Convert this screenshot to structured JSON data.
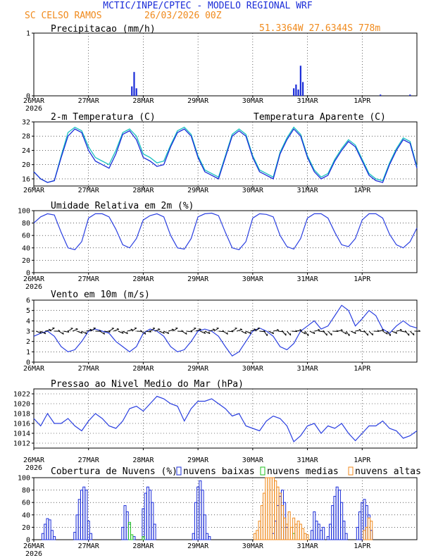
{
  "header": {
    "title": "MCTIC/INPE/CPTEC - MODELO REGIONAL WRF",
    "location": "SC CELSO RAMOS",
    "run": "26/03/2026 00Z",
    "coords": "51.3364W 27.6344S 778m",
    "title_color": "#1a2cd8",
    "accent_color": "#f08a1c"
  },
  "time_axis": {
    "labels": [
      "26MAR",
      "27MAR",
      "28MAR",
      "29MAR",
      "30MAR",
      "31MAR",
      "1APR"
    ],
    "year": "2026",
    "hours_total": 168
  },
  "chart_data": [
    {
      "type": "bar",
      "title": "Precipitacao (mm/h)",
      "ylim": [
        0,
        1
      ],
      "yticks": [
        0,
        1
      ],
      "x_hours": [
        43,
        44,
        45,
        114,
        115,
        116,
        117,
        118,
        152,
        165
      ],
      "values": [
        0.15,
        0.38,
        0.12,
        0.12,
        0.18,
        0.1,
        0.48,
        0.22,
        0.02,
        0.02
      ],
      "color": "#1a2cd8"
    },
    {
      "type": "line",
      "title": "2-m Temperatura (C)",
      "legend_extra": "Temperatura Aparente (C)",
      "ylim": [
        14,
        32
      ],
      "yticks": [
        16,
        20,
        24,
        28,
        32
      ],
      "series": [
        {
          "name": "2-m Temperatura (C)",
          "color": "#1a2cd8",
          "x": [
            0,
            3,
            6,
            9,
            12,
            15,
            18,
            21,
            24,
            27,
            30,
            33,
            36,
            39,
            42,
            45,
            48,
            51,
            54,
            57,
            60,
            63,
            66,
            69,
            72,
            75,
            78,
            81,
            84,
            87,
            90,
            93,
            96,
            99,
            102,
            105,
            108,
            111,
            114,
            117,
            120,
            123,
            126,
            129,
            132,
            135,
            138,
            141,
            144,
            147,
            150,
            153,
            156,
            159,
            162,
            165,
            168
          ],
          "y": [
            18,
            16,
            15,
            15.5,
            22,
            28,
            30,
            29,
            24,
            21,
            20,
            19,
            23,
            28.5,
            29.5,
            27,
            22,
            21,
            19.5,
            20,
            25,
            29,
            30,
            28,
            22,
            18,
            17,
            16,
            22,
            28,
            29.5,
            28,
            22,
            18,
            17,
            16,
            23,
            27,
            30,
            28,
            22,
            18,
            16,
            17,
            21,
            24,
            26.5,
            25,
            21,
            17,
            15.5,
            15,
            20,
            24,
            27,
            26,
            19
          ]
        },
        {
          "name": "Temperatura Aparente (C)",
          "color": "#18c0c0",
          "x": [
            0,
            3,
            6,
            9,
            12,
            15,
            18,
            21,
            24,
            27,
            30,
            33,
            36,
            39,
            42,
            45,
            48,
            51,
            54,
            57,
            60,
            63,
            66,
            69,
            72,
            75,
            78,
            81,
            84,
            87,
            90,
            93,
            96,
            99,
            102,
            105,
            108,
            111,
            114,
            117,
            120,
            123,
            126,
            129,
            132,
            135,
            138,
            141,
            144,
            147,
            150,
            153,
            156,
            159,
            162,
            165,
            168
          ],
          "y": [
            18,
            16,
            15,
            15.5,
            22.5,
            29,
            30.5,
            29.5,
            25,
            22,
            21,
            20,
            24,
            29,
            30,
            28,
            23,
            22,
            20.5,
            21,
            25.5,
            29.5,
            30.5,
            28.5,
            22.5,
            18.5,
            17.5,
            16.5,
            22.5,
            28.5,
            30,
            28.5,
            22.5,
            18.5,
            17.5,
            16.5,
            23.5,
            27.5,
            30.5,
            28.5,
            22.5,
            18.5,
            16.5,
            17.5,
            21.5,
            24.5,
            27,
            25.5,
            21.5,
            17.5,
            16,
            15.5,
            20.5,
            24.5,
            27.5,
            26.5,
            19.5
          ]
        }
      ]
    },
    {
      "type": "line",
      "title": "Umidade Relativa em 2m (%)",
      "ylim": [
        0,
        100
      ],
      "yticks": [
        0,
        20,
        40,
        60,
        80,
        100
      ],
      "x": [
        0,
        3,
        6,
        9,
        12,
        15,
        18,
        21,
        24,
        27,
        30,
        33,
        36,
        39,
        42,
        45,
        48,
        51,
        54,
        57,
        60,
        63,
        66,
        69,
        72,
        75,
        78,
        81,
        84,
        87,
        90,
        93,
        96,
        99,
        102,
        105,
        108,
        111,
        114,
        117,
        120,
        123,
        126,
        129,
        132,
        135,
        138,
        141,
        144,
        147,
        150,
        153,
        156,
        159,
        162,
        165,
        168
      ],
      "values": [
        80,
        90,
        95,
        93,
        65,
        40,
        37,
        50,
        88,
        95,
        95,
        90,
        70,
        45,
        40,
        55,
        85,
        92,
        95,
        90,
        60,
        40,
        38,
        55,
        90,
        95,
        96,
        92,
        65,
        40,
        37,
        50,
        88,
        95,
        94,
        90,
        60,
        42,
        38,
        55,
        88,
        95,
        95,
        88,
        65,
        45,
        42,
        55,
        85,
        95,
        95,
        88,
        62,
        45,
        40,
        50,
        72
      ]
    },
    {
      "type": "line",
      "title": "Vento em 10m (m/s)",
      "ylim": [
        0,
        6
      ],
      "yticks": [
        0,
        1,
        2,
        3,
        4,
        5,
        6
      ],
      "x": [
        0,
        3,
        6,
        9,
        12,
        15,
        18,
        21,
        24,
        27,
        30,
        33,
        36,
        39,
        42,
        45,
        48,
        51,
        54,
        57,
        60,
        63,
        66,
        69,
        72,
        75,
        78,
        81,
        84,
        87,
        90,
        93,
        96,
        99,
        102,
        105,
        108,
        111,
        114,
        117,
        120,
        123,
        126,
        129,
        132,
        135,
        138,
        141,
        144,
        147,
        150,
        153,
        156,
        159,
        162,
        165,
        168
      ],
      "values": [
        2.5,
        2.8,
        3,
        2.5,
        1.5,
        1,
        1.2,
        2,
        3,
        3.2,
        3,
        2.8,
        2,
        1.5,
        1,
        1.5,
        2.8,
        3.2,
        3,
        2.5,
        1.5,
        1,
        1.2,
        2,
        3,
        3.2,
        3,
        2.5,
        1.5,
        0.6,
        1,
        2,
        3,
        3.3,
        3,
        2.5,
        1.5,
        1.2,
        1.8,
        3,
        3.5,
        4,
        3.2,
        3.5,
        4.5,
        5.5,
        5,
        3.5,
        4.2,
        5,
        4.5,
        3.2,
        2.8,
        3.5,
        4,
        3.5,
        3.3
      ]
    },
    {
      "type": "line",
      "title": "Pressao ao Nivel Medio do Mar (hPa)",
      "ylim": [
        1011,
        1023
      ],
      "yticks": [
        1012,
        1014,
        1016,
        1018,
        1020,
        1022
      ],
      "x": [
        0,
        3,
        6,
        9,
        12,
        15,
        18,
        21,
        24,
        27,
        30,
        33,
        36,
        39,
        42,
        45,
        48,
        51,
        54,
        57,
        60,
        63,
        66,
        69,
        72,
        75,
        78,
        81,
        84,
        87,
        90,
        93,
        96,
        99,
        102,
        105,
        108,
        111,
        114,
        117,
        120,
        123,
        126,
        129,
        132,
        135,
        138,
        141,
        144,
        147,
        150,
        153,
        156,
        159,
        162,
        165,
        168
      ],
      "values": [
        1017,
        1015.5,
        1018,
        1016,
        1016,
        1017,
        1015.5,
        1014.5,
        1016.5,
        1018,
        1017,
        1015.5,
        1015,
        1016.5,
        1019,
        1019.5,
        1018.5,
        1020,
        1021.5,
        1021,
        1020,
        1019.5,
        1016.5,
        1019,
        1020.5,
        1020.5,
        1021,
        1020,
        1019,
        1017.5,
        1018,
        1015.5,
        1015,
        1014.5,
        1016.5,
        1017.5,
        1017,
        1015.5,
        1012.3,
        1013.5,
        1015.5,
        1016,
        1014,
        1015.5,
        1015,
        1016,
        1014,
        1012.5,
        1014,
        1015.5,
        1015.5,
        1016.5,
        1015,
        1014.5,
        1013,
        1013.5,
        1014.5
      ]
    },
    {
      "type": "bar",
      "title": "Cobertura de Nuvens (%)",
      "legend": [
        "nuvens baixas",
        "nuvens medias",
        "nuvens altas"
      ],
      "ylim": [
        0,
        100
      ],
      "yticks": [
        0,
        20,
        40,
        60,
        80,
        100
      ],
      "series": [
        {
          "name": "nuvens baixas",
          "color": "#1a2cd8",
          "x_hours": [
            4,
            5,
            6,
            7,
            8,
            9,
            18,
            19,
            20,
            21,
            22,
            23,
            24,
            25,
            39,
            40,
            41,
            42,
            44,
            48,
            49,
            50,
            51,
            52,
            53,
            70,
            71,
            72,
            73,
            74,
            75,
            76,
            77,
            105,
            106,
            107,
            108,
            109,
            110,
            111,
            122,
            123,
            124,
            125,
            126,
            127,
            129,
            130,
            131,
            132,
            133,
            134,
            135,
            136,
            137,
            142,
            143,
            144,
            145,
            146,
            147,
            148
          ],
          "values": [
            10,
            25,
            34,
            32,
            15,
            5,
            12,
            40,
            65,
            80,
            85,
            80,
            30,
            10,
            20,
            55,
            45,
            25,
            5,
            50,
            75,
            85,
            80,
            60,
            25,
            10,
            60,
            85,
            95,
            80,
            40,
            10,
            5,
            10,
            30,
            55,
            70,
            80,
            60,
            20,
            15,
            45,
            30,
            25,
            15,
            20,
            5,
            25,
            55,
            70,
            85,
            80,
            60,
            30,
            10,
            20,
            45,
            60,
            65,
            55,
            40,
            15
          ]
        },
        {
          "name": "nuvens medias",
          "color": "#22c222",
          "x_hours": [
            42,
            43,
            48,
            114
          ],
          "values": [
            28,
            8,
            5,
            10
          ]
        },
        {
          "name": "nuvens altas",
          "color": "#f08a1c",
          "x_hours": [
            97,
            98,
            99,
            100,
            101,
            102,
            103,
            104,
            105,
            106,
            107,
            108,
            109,
            110,
            111,
            112,
            113,
            114,
            115,
            116,
            117,
            118,
            119,
            120,
            145,
            146,
            147,
            148
          ],
          "values": [
            10,
            15,
            30,
            55,
            75,
            100,
            100,
            100,
            100,
            95,
            85,
            75,
            55,
            35,
            25,
            45,
            20,
            35,
            25,
            30,
            25,
            18,
            10,
            8,
            15,
            20,
            35,
            30
          ]
        }
      ]
    }
  ]
}
